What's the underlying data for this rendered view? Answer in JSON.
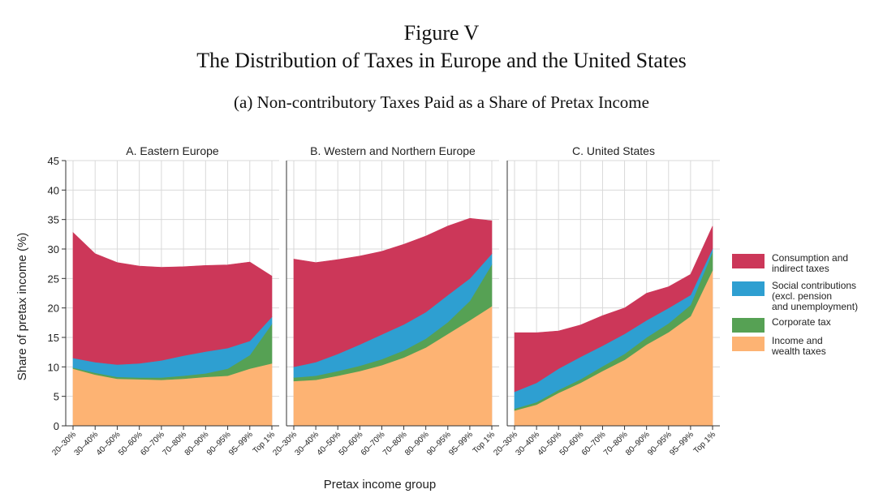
{
  "figure": {
    "title": "Figure V",
    "subtitle": "The Distribution of Taxes in Europe and the United States",
    "panel_title": "(a) Non-contributory Taxes Paid as a Share of Pretax Income"
  },
  "chart_data": {
    "type": "area",
    "stacked": true,
    "ylabel": "Share of pretax income (%)",
    "xlabel": "Pretax income group",
    "ylim": [
      0,
      45
    ],
    "yticks": [
      0,
      5,
      10,
      15,
      20,
      25,
      30,
      35,
      40,
      45
    ],
    "grid": true,
    "legend_position": "right",
    "categories": [
      "20–30%",
      "30–40%",
      "40–50%",
      "50–60%",
      "60–70%",
      "70–80%",
      "80–90%",
      "90–95%",
      "95–99%",
      "Top 1%"
    ],
    "colors": {
      "income": "#FDB373",
      "corporate": "#56A154",
      "social": "#2E9FD1",
      "consumption": "#CC3759"
    },
    "legend": [
      {
        "key": "consumption",
        "lines": [
          "Consumption and",
          "indirect taxes"
        ]
      },
      {
        "key": "social",
        "lines": [
          "Social contributions",
          "(excl. pension",
          "and unemployment)"
        ]
      },
      {
        "key": "corporate",
        "lines": [
          "Corporate tax"
        ]
      },
      {
        "key": "income",
        "lines": [
          "Income and",
          "wealth taxes"
        ]
      }
    ],
    "panels": [
      {
        "title": "A. Eastern Europe",
        "series": {
          "income": [
            9.7,
            8.7,
            8.0,
            7.9,
            7.8,
            8.0,
            8.3,
            8.5,
            9.7,
            10.6
          ],
          "corporate": [
            0.2,
            0.3,
            0.3,
            0.3,
            0.4,
            0.5,
            0.6,
            1.2,
            2.3,
            6.7
          ],
          "social": [
            1.6,
            1.8,
            2.1,
            2.4,
            2.9,
            3.4,
            3.7,
            3.5,
            2.4,
            1.2
          ],
          "consumption": [
            21.3,
            18.4,
            17.3,
            16.5,
            15.8,
            15.1,
            14.6,
            14.1,
            13.4,
            6.9
          ]
        }
      },
      {
        "title": "B. Western and Northern Europe",
        "series": {
          "income": [
            7.6,
            7.8,
            8.5,
            9.3,
            10.3,
            11.6,
            13.3,
            15.6,
            17.9,
            20.3
          ],
          "corporate": [
            0.6,
            0.7,
            0.8,
            0.9,
            1.0,
            1.2,
            1.5,
            2.0,
            3.3,
            7.1
          ],
          "social": [
            1.8,
            2.3,
            2.9,
            3.6,
            4.2,
            4.4,
            4.5,
            4.6,
            3.8,
            1.8
          ],
          "consumption": [
            18.3,
            16.9,
            16.0,
            15.0,
            14.1,
            13.6,
            12.9,
            11.7,
            10.2,
            5.6
          ]
        }
      },
      {
        "title": "C. United States",
        "series": {
          "income": [
            2.6,
            3.6,
            5.6,
            7.3,
            9.3,
            11.2,
            13.8,
            15.9,
            18.6,
            26.4
          ],
          "corporate": [
            0.3,
            0.4,
            0.5,
            0.6,
            0.8,
            1.0,
            1.2,
            1.5,
            1.9,
            3.1
          ],
          "social": [
            2.9,
            3.3,
            3.6,
            3.8,
            3.5,
            3.4,
            2.9,
            2.6,
            1.7,
            0.6
          ],
          "consumption": [
            10.0,
            8.5,
            6.4,
            5.4,
            5.1,
            4.4,
            4.6,
            3.6,
            3.5,
            3.8
          ]
        }
      }
    ]
  }
}
